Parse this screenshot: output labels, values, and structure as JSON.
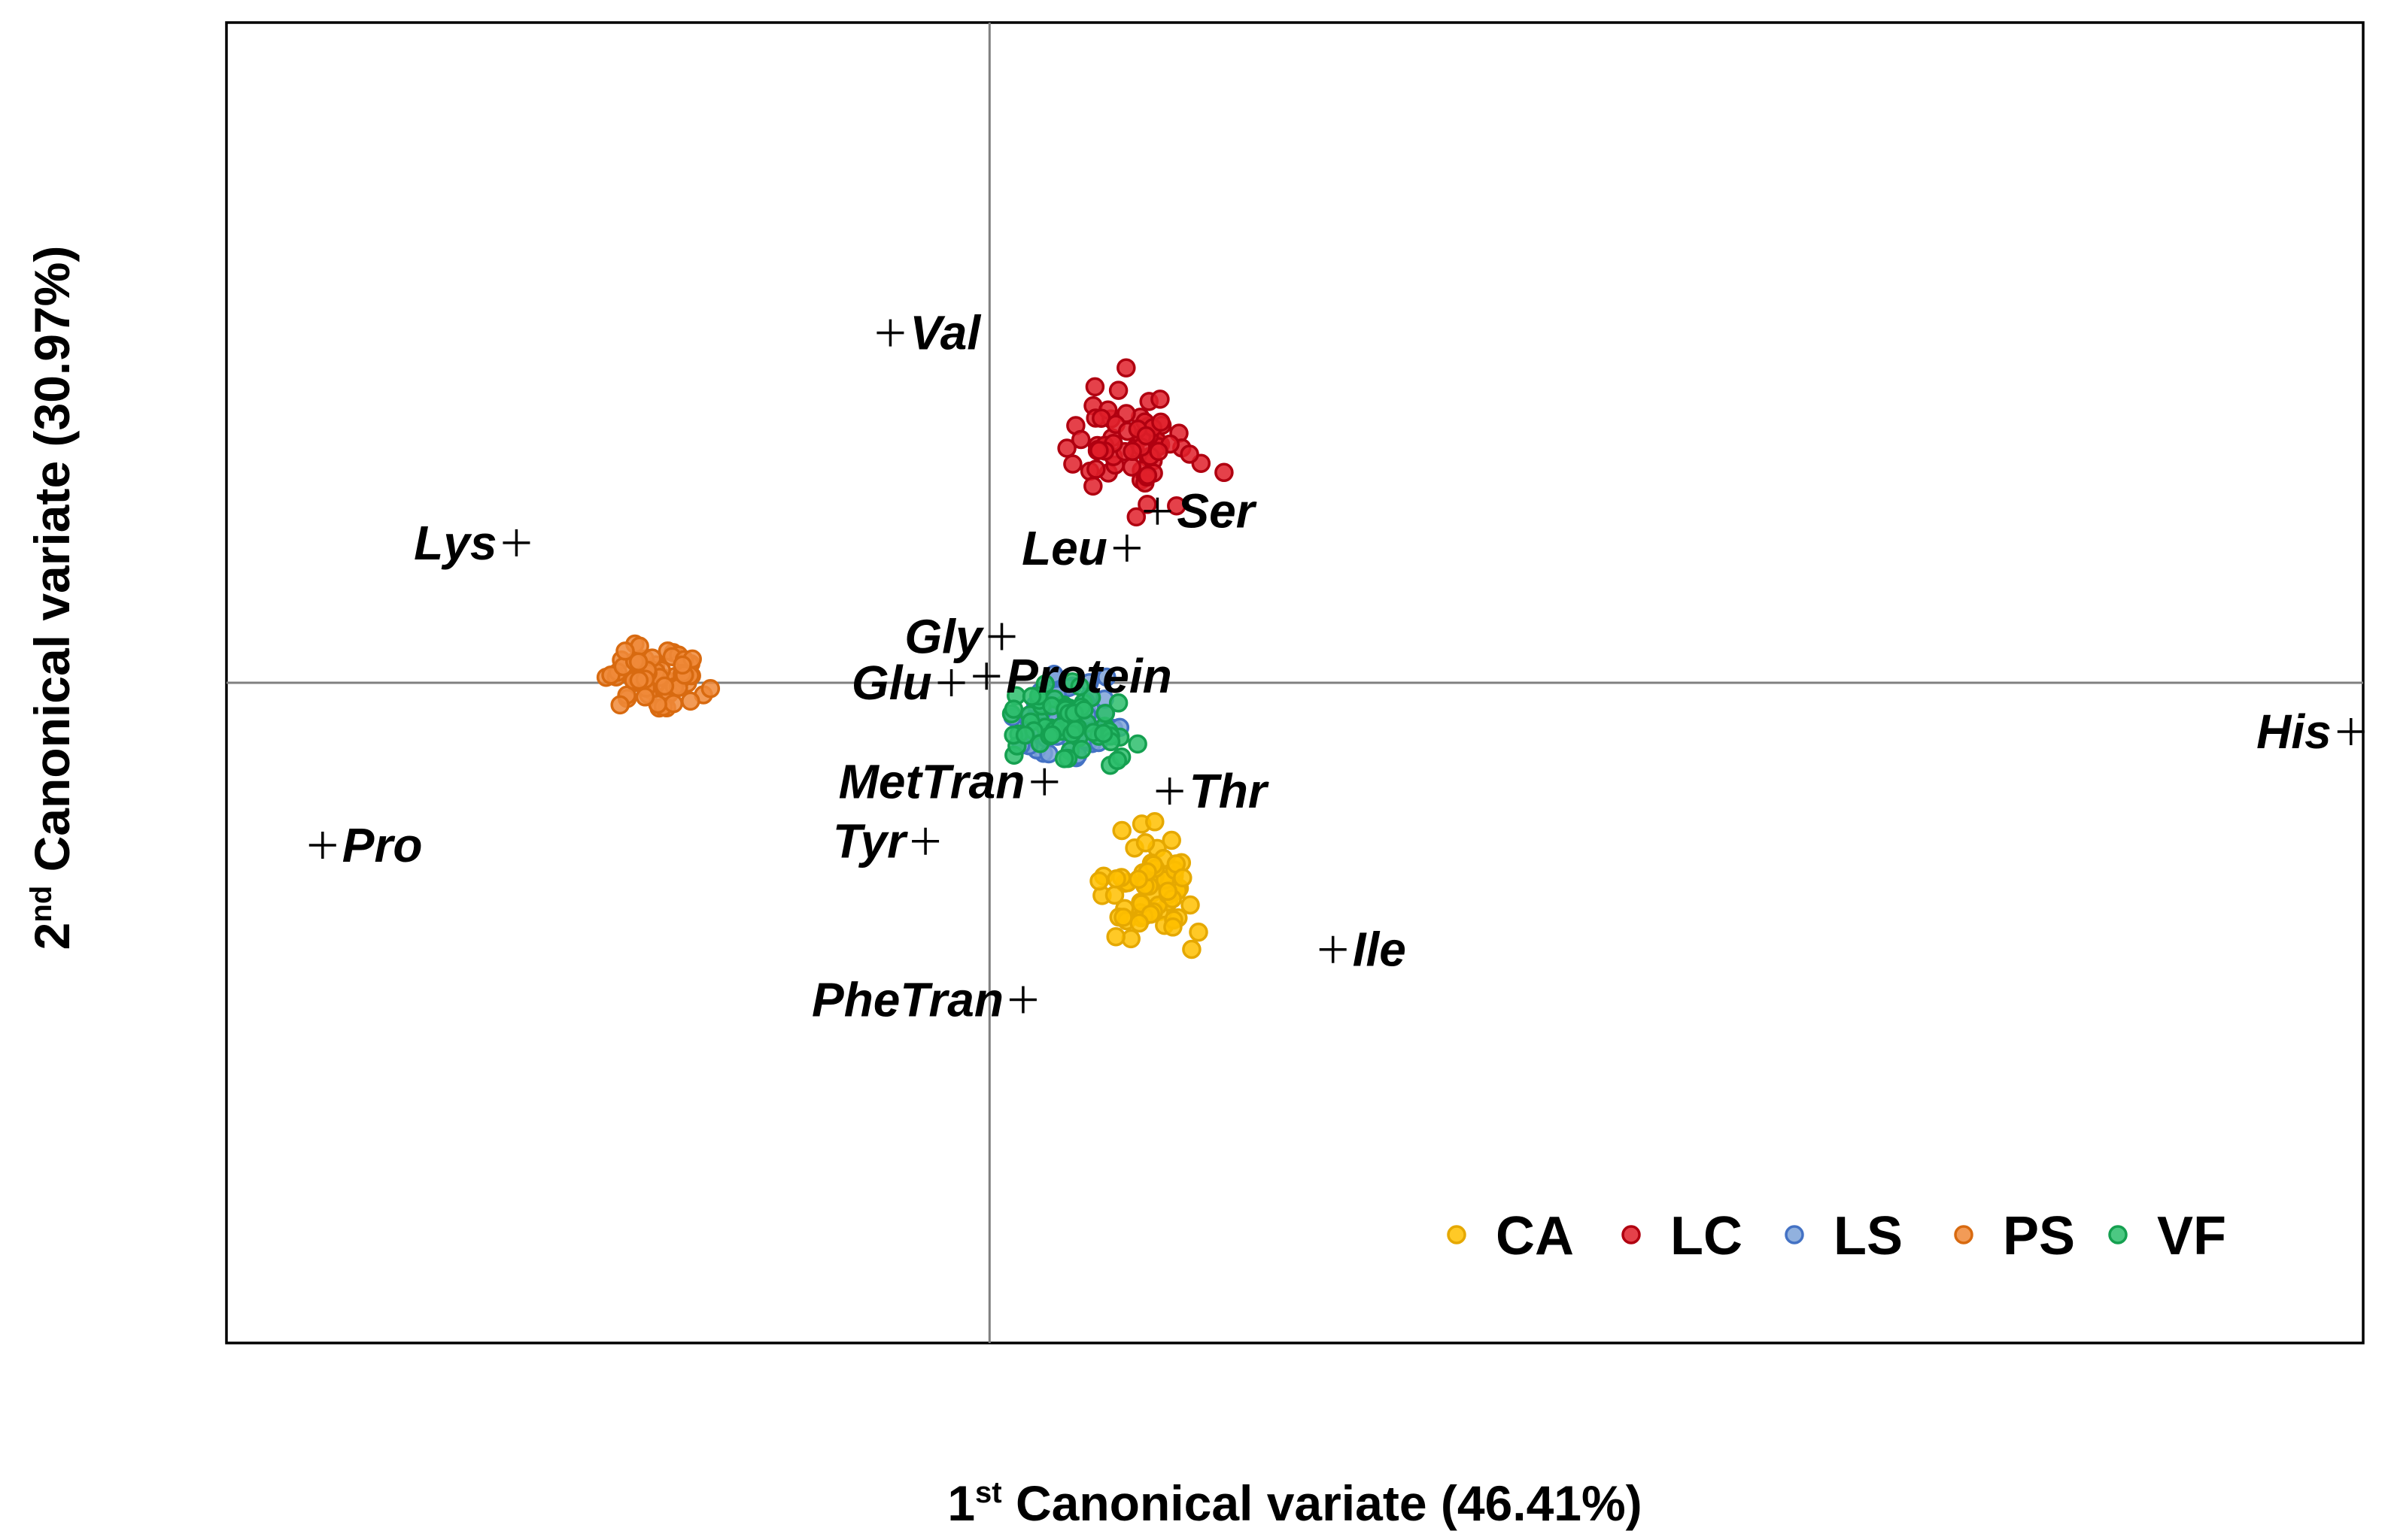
{
  "chart_data": {
    "type": "scatter",
    "title": "",
    "xlabel": {
      "prefix": "1",
      "sup": "st",
      "rest": " Canonical variate (46.41%)"
    },
    "ylabel": {
      "prefix": "2",
      "sup": "nd",
      "rest": " Canonical variate (30.97%)"
    },
    "xlim": [
      -5,
      9
    ],
    "ylim": [
      -5,
      5
    ],
    "grid": false,
    "reference_lines": {
      "x": 0,
      "y": 0
    },
    "legend_position": "bottom-right",
    "groups": [
      {
        "name": "CA",
        "color": "#FFC000",
        "edge": "#E5A800",
        "center": [
          1.05,
          -1.55
        ],
        "spread": [
          0.22,
          0.28
        ],
        "n": 70
      },
      {
        "name": "LC",
        "color": "#E0202A",
        "edge": "#B00010",
        "center": [
          0.95,
          1.8
        ],
        "spread": [
          0.3,
          0.3
        ],
        "n": 70
      },
      {
        "name": "LS",
        "color": "#7EA3D8",
        "edge": "#4472C4",
        "center": [
          0.45,
          -0.3
        ],
        "spread": [
          0.28,
          0.2
        ],
        "n": 70
      },
      {
        "name": "PS",
        "color": "#F08A3A",
        "edge": "#D86A10",
        "center": [
          -2.2,
          0.05
        ],
        "spread": [
          0.25,
          0.18
        ],
        "n": 70
      },
      {
        "name": "VF",
        "color": "#2DBE6C",
        "edge": "#15A050",
        "center": [
          0.5,
          -0.3
        ],
        "spread": [
          0.26,
          0.18
        ],
        "n": 70
      }
    ],
    "variables": [
      {
        "name": "Val",
        "x": -0.65,
        "y": 2.65,
        "label_side": "right"
      },
      {
        "name": "Ser",
        "x": 1.1,
        "y": 1.3,
        "label_side": "right"
      },
      {
        "name": "Leu",
        "x": 0.9,
        "y": 1.02,
        "label_side": "left"
      },
      {
        "name": "Lys",
        "x": -3.1,
        "y": 1.06,
        "label_side": "left"
      },
      {
        "name": "Gly",
        "x": 0.08,
        "y": 0.35,
        "label_side": "left"
      },
      {
        "name": "Glu",
        "x": -0.25,
        "y": 0.0,
        "label_side": "left"
      },
      {
        "name": "Protein",
        "x": -0.02,
        "y": 0.05,
        "label_side": "right"
      },
      {
        "name": "His",
        "x": 8.92,
        "y": -0.37,
        "label_side": "left"
      },
      {
        "name": "Thr",
        "x": 1.18,
        "y": -0.82,
        "label_side": "right"
      },
      {
        "name": "MetTran",
        "x": 0.36,
        "y": -0.75,
        "label_side": "left"
      },
      {
        "name": "Tyr",
        "x": -0.42,
        "y": -1.2,
        "label_side": "left"
      },
      {
        "name": "Pro",
        "x": -4.37,
        "y": -1.23,
        "label_side": "right"
      },
      {
        "name": "Ile",
        "x": 2.25,
        "y": -2.02,
        "label_side": "right"
      },
      {
        "name": "PheTran",
        "x": 0.22,
        "y": -2.4,
        "label_side": "left"
      }
    ]
  }
}
